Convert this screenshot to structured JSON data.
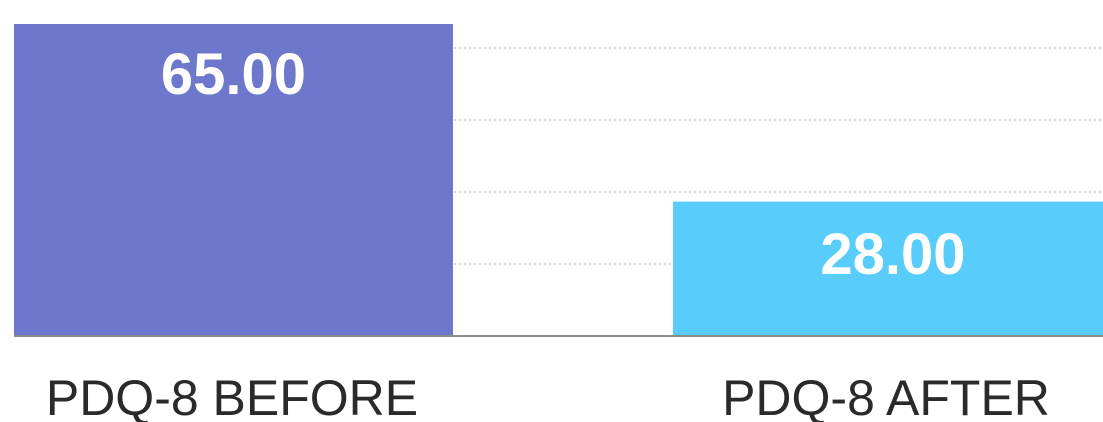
{
  "chart_data": {
    "type": "bar",
    "categories": [
      "PDQ-8 BEFORE",
      "PDQ-8 AFTER"
    ],
    "values": [
      65,
      28
    ],
    "value_labels": [
      "65.00",
      "28.00"
    ],
    "colors": [
      "#6d77cc",
      "#58cdfb"
    ],
    "title": "",
    "xlabel": "",
    "ylabel": "",
    "ylim": [
      0,
      80
    ],
    "grid": true,
    "gridline_values": [
      15,
      30,
      45,
      60
    ],
    "legend": "none"
  }
}
